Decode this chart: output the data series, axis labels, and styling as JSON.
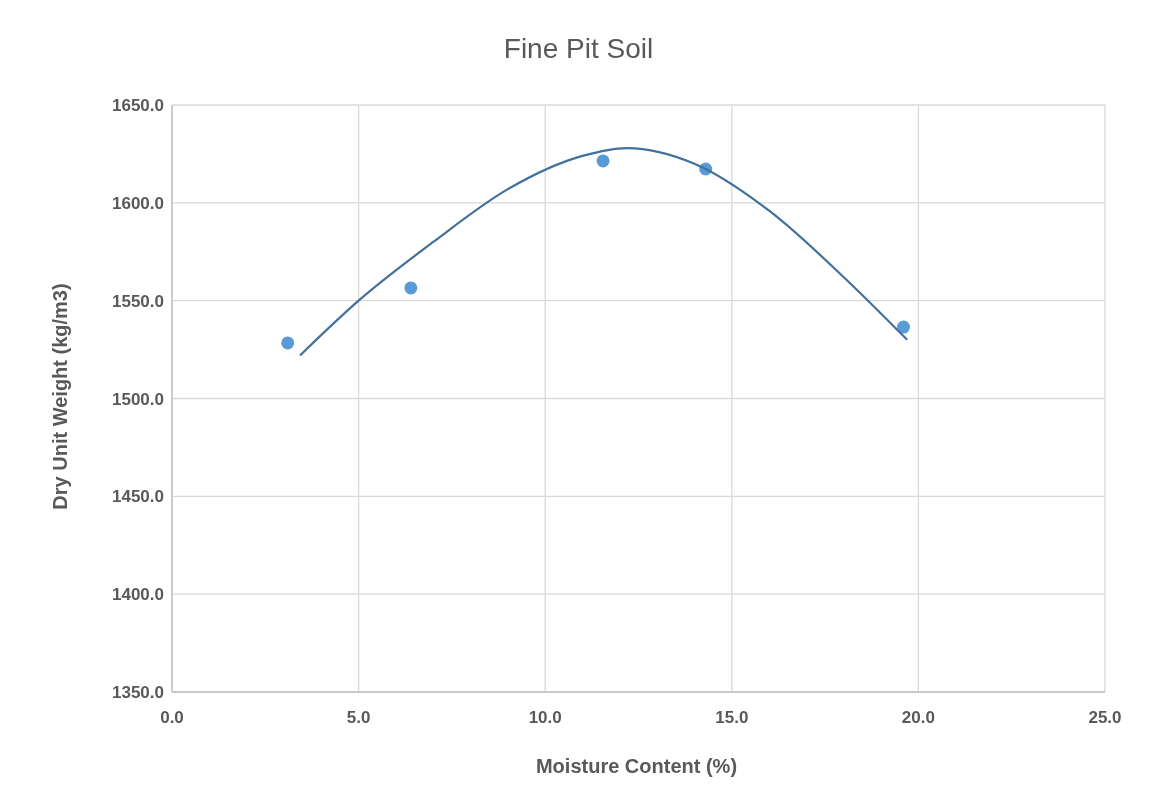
{
  "chart_data": {
    "type": "scatter",
    "title": "Fine Pit Soil",
    "xlabel": "Moisture Content (%)",
    "ylabel": "Dry Unit Weight (kg/m3)",
    "series": [
      {
        "color": "#5b9bd5",
        "x": [
          3.1,
          6.4,
          11.55,
          14.3,
          19.6
        ],
        "values": [
          1528.4,
          1556.5,
          1621.4,
          1617.3,
          1536.5
        ],
        "marker": "circle"
      },
      {
        "type": "line",
        "color": "#41719c",
        "x": [
          3.43,
          5,
          7,
          9,
          11,
          12.2,
          14,
          16,
          18,
          19.7
        ],
        "values": [
          1522,
          1550,
          1580,
          1607,
          1624,
          1628,
          1620,
          1596,
          1562,
          1530
        ],
        "marker": "none"
      }
    ],
    "xlim": [
      0,
      25
    ],
    "xticks": [
      {
        "value": 0,
        "label": "0.0"
      },
      {
        "value": 5,
        "label": "5.0"
      },
      {
        "value": 10,
        "label": "10.0"
      },
      {
        "value": 15,
        "label": "15.0"
      },
      {
        "value": 20,
        "label": "20.0"
      },
      {
        "value": 25,
        "label": "25.0"
      }
    ],
    "ylim": [
      1350,
      1650
    ],
    "yticks": [
      {
        "value": 1350,
        "label": "1350.0"
      },
      {
        "value": 1400,
        "label": "1400.0"
      },
      {
        "value": 1450,
        "label": "1450.0"
      },
      {
        "value": 1500,
        "label": "1500.0"
      },
      {
        "value": 1550,
        "label": "1550.0"
      },
      {
        "value": 1600,
        "label": "1600.0"
      },
      {
        "value": 1650,
        "label": "1650.0"
      }
    ],
    "grid": true
  }
}
